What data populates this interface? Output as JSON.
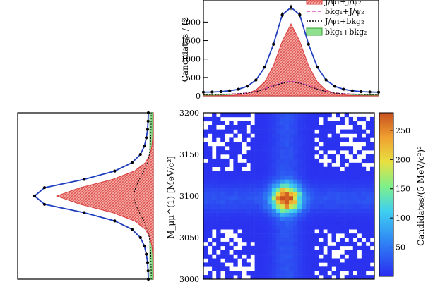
{
  "chart_data": [
    {
      "type": "line",
      "panel": "top-projection",
      "ylabel_visible": "Candidates / (2",
      "ylim": [
        0,
        2600
      ],
      "y_ticks": [
        "0",
        "500",
        "1000",
        "1500",
        "2000"
      ],
      "x": [
        3000,
        3010,
        3020,
        3030,
        3040,
        3050,
        3060,
        3070,
        3080,
        3090,
        3100,
        3110,
        3120,
        3130,
        3140,
        3150,
        3160,
        3170,
        3180,
        3190,
        3200
      ],
      "series": [
        {
          "name": "J/ψ₁+J/ψ₂",
          "values": [
            2,
            3,
            6,
            12,
            28,
            65,
            160,
            380,
            820,
            1480,
            1950,
            1480,
            820,
            380,
            160,
            65,
            28,
            12,
            6,
            3,
            2
          ],
          "color": "#f08080"
        },
        {
          "name": "bkg₁+J/ψ₂",
          "values": [
            40,
            42,
            45,
            50,
            60,
            80,
            120,
            190,
            280,
            360,
            400,
            360,
            280,
            190,
            120,
            80,
            60,
            50,
            45,
            42,
            40
          ],
          "color": "#d946b8"
        },
        {
          "name": "J/ψ₁+bkg₂",
          "values": [
            40,
            42,
            45,
            50,
            60,
            80,
            120,
            190,
            280,
            360,
            400,
            360,
            280,
            190,
            120,
            80,
            60,
            50,
            45,
            42,
            40
          ],
          "color": "#000000"
        },
        {
          "name": "bkg₁+bkg₂",
          "values": [
            20,
            20,
            20,
            20,
            20,
            20,
            20,
            20,
            20,
            20,
            20,
            20,
            20,
            20,
            20,
            20,
            20,
            20,
            20,
            20,
            20
          ],
          "color": "#2ca02c"
        }
      ],
      "total": [
        100,
        105,
        115,
        140,
        180,
        260,
        430,
        780,
        1400,
        2200,
        2400,
        2200,
        1400,
        780,
        430,
        260,
        180,
        140,
        115,
        105,
        100
      ]
    },
    {
      "type": "heatmap",
      "panel": "2d-distribution",
      "xlim": [
        3000,
        3200
      ],
      "ylim": [
        3000,
        3200
      ],
      "y_ticks": [
        "3000",
        "3050",
        "3100",
        "3150",
        "3200"
      ],
      "ylabel": "M_μμ^(1) [MeV/c²]",
      "colorbar": {
        "label": "Candidates/(5 MeV/c²)²",
        "ticks": [
          "50",
          "100",
          "150",
          "200",
          "250"
        ],
        "range": [
          0,
          280
        ]
      },
      "peak": {
        "x": 3097,
        "y": 3097,
        "value": 270
      }
    },
    {
      "type": "line",
      "panel": "left-projection",
      "orientation": "horizontal",
      "ylim": [
        3000,
        3200
      ],
      "peak_y": 3097
    }
  ],
  "legend": {
    "items": [
      {
        "label": "J/ψ₁+J/ψ₂",
        "swatch": "hatched-red"
      },
      {
        "label": "bkg₁+J/ψ₂",
        "swatch": "magenta-dash"
      },
      {
        "label": "J/ψ₁+bkg₂",
        "swatch": "black-dot"
      },
      {
        "label": "bkg₁+bkg₂",
        "swatch": "green-fill"
      }
    ]
  }
}
